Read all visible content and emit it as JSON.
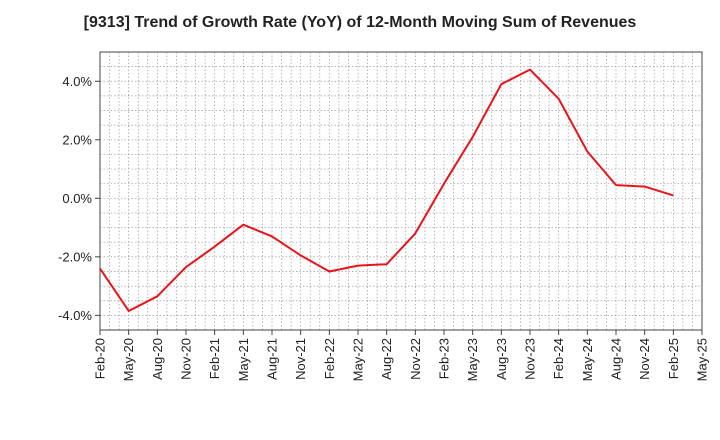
{
  "chart_data": {
    "type": "line",
    "title": "[9313]  Trend of Growth Rate (YoY) of 12-Month Moving Sum of Revenues",
    "xlabel": "",
    "ylabel": "",
    "x_tick_labels": [
      "Feb-20",
      "May-20",
      "Aug-20",
      "Nov-20",
      "Feb-21",
      "May-21",
      "Aug-21",
      "Nov-21",
      "Feb-22",
      "May-22",
      "Aug-22",
      "Nov-22",
      "Feb-23",
      "May-23",
      "Aug-23",
      "Nov-23",
      "Feb-24",
      "May-24",
      "Aug-24",
      "Nov-24",
      "Feb-25",
      "May-25"
    ],
    "y_ticks": [
      4.0,
      2.0,
      0.0,
      -2.0,
      -4.0
    ],
    "y_tick_labels": [
      "4.0%",
      "2.0%",
      "0.0%",
      "-2.0%",
      "-4.0%"
    ],
    "ylim": [
      -4.5,
      5.0
    ],
    "grid": true,
    "series": [
      {
        "color": "#e8141b",
        "x": [
          "Feb-20",
          "May-20",
          "Aug-20",
          "Nov-20",
          "Feb-21",
          "May-21",
          "Aug-21",
          "Nov-21",
          "Feb-22",
          "May-22",
          "Aug-22",
          "Nov-22",
          "Feb-23",
          "May-23",
          "Aug-23",
          "Nov-23",
          "Feb-24",
          "May-24",
          "Aug-24",
          "Nov-24",
          "Feb-25"
        ],
        "values": [
          -2.4,
          -3.85,
          -3.35,
          -2.35,
          -1.65,
          -0.9,
          -1.3,
          -1.95,
          -2.5,
          -2.3,
          -2.25,
          -1.2,
          0.5,
          2.1,
          3.9,
          4.4,
          3.4,
          1.6,
          0.45,
          0.4,
          0.1
        ]
      }
    ]
  }
}
